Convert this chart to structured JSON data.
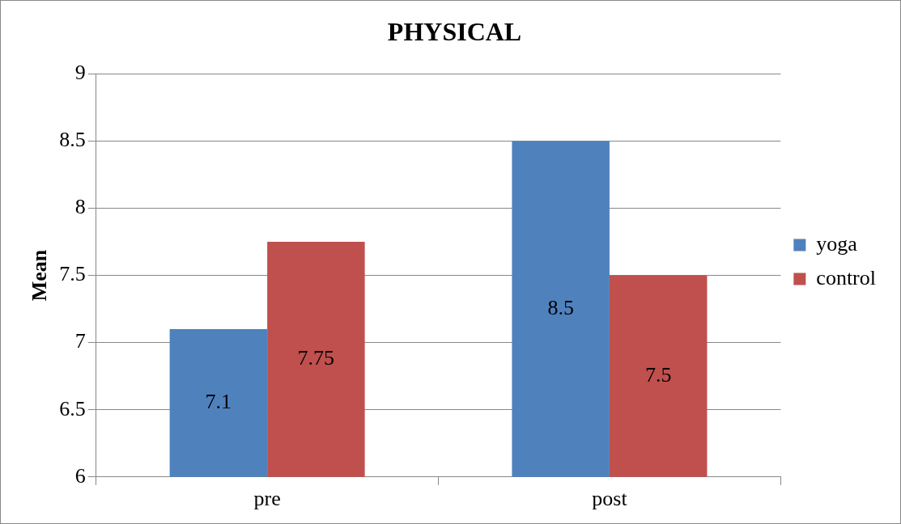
{
  "chart_data": {
    "type": "bar",
    "title": "PHYSICAL",
    "ylabel": "Mean",
    "categories": [
      "pre",
      "post"
    ],
    "series": [
      {
        "name": "yoga",
        "color": "#4f81bd",
        "values": [
          7.1,
          8.5
        ]
      },
      {
        "name": "control",
        "color": "#c0504d",
        "values": [
          7.75,
          7.5
        ]
      }
    ],
    "ylim": [
      6,
      9
    ],
    "yticks": [
      6,
      6.5,
      7,
      7.5,
      8,
      8.5,
      9
    ],
    "grid": "y",
    "legend": "right",
    "data_labels": true
  }
}
